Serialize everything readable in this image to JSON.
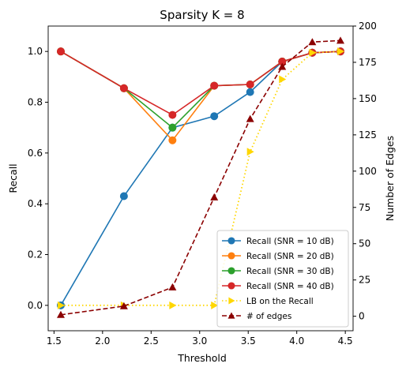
{
  "chart_data": {
    "type": "line",
    "title": "Sparsity K = 8",
    "xlabel": "Threshold",
    "ylabel": "Recall",
    "y2label": "Number of Edges",
    "xlim": [
      1.44,
      4.58
    ],
    "ylim": [
      -0.1,
      1.1
    ],
    "y2lim": [
      -10,
      200
    ],
    "x_ticks": [
      "1.5",
      "2.0",
      "2.5",
      "3.0",
      "3.5",
      "4.0",
      "4.5"
    ],
    "y_ticks": [
      "0.0",
      "0.2",
      "0.4",
      "0.6",
      "0.8",
      "1.0"
    ],
    "y2_ticks": [
      "0",
      "25",
      "50",
      "75",
      "100",
      "125",
      "150",
      "175",
      "200"
    ],
    "x": [
      1.57,
      2.22,
      2.72,
      3.15,
      3.52,
      3.85,
      4.16,
      4.45
    ],
    "legend_position": "lower right",
    "grid": false,
    "series": [
      {
        "name": "Recall (SNR = 10 dB)",
        "axis": "left",
        "color": "#1f77b4",
        "style": "solid",
        "marker": "circle",
        "values": [
          0.0,
          0.43,
          0.7,
          0.745,
          0.84,
          0.96,
          0.995,
          1.0
        ]
      },
      {
        "name": "Recall (SNR = 20 dB)",
        "axis": "left",
        "color": "#ff7f0e",
        "style": "solid",
        "marker": "circle",
        "values": [
          1.0,
          0.855,
          0.65,
          0.865,
          0.87,
          0.96,
          0.995,
          1.0
        ]
      },
      {
        "name": "Recall (SNR = 30 dB)",
        "axis": "left",
        "color": "#2ca02c",
        "style": "solid",
        "marker": "circle",
        "values": [
          1.0,
          0.855,
          0.7,
          0.865,
          0.87,
          0.96,
          0.995,
          1.0
        ]
      },
      {
        "name": "Recall (SNR = 40 dB)",
        "axis": "left",
        "color": "#d62728",
        "style": "solid",
        "marker": "circle",
        "values": [
          1.0,
          0.855,
          0.75,
          0.865,
          0.87,
          0.96,
          0.995,
          1.0
        ]
      },
      {
        "name": "LB on the Recall",
        "axis": "left",
        "color": "#ffd700",
        "style": "dotted",
        "marker": "triangle-right",
        "values": [
          0.0,
          0.0,
          0.0,
          0.0,
          0.605,
          0.89,
          0.995,
          1.0
        ]
      },
      {
        "name": "# of edges",
        "axis": "right",
        "color": "#8b0000",
        "style": "dashed",
        "marker": "triangle-up",
        "values": [
          1,
          7,
          20,
          82,
          136,
          172,
          189,
          190
        ]
      }
    ]
  }
}
